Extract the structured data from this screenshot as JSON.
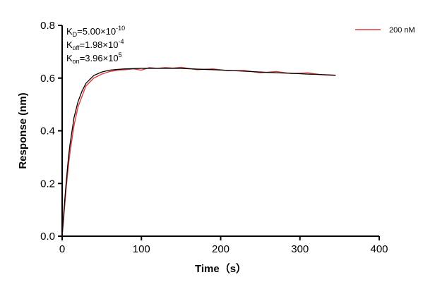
{
  "chart_data": {
    "type": "line",
    "xlabel": "Time（s）",
    "ylabel": "Response (nm)",
    "x": [
      0,
      2,
      5,
      8,
      10,
      15,
      20,
      25,
      30,
      40,
      50,
      60,
      70,
      80,
      90,
      100,
      110,
      120,
      130,
      140,
      150,
      170,
      190,
      210,
      230,
      250,
      270,
      290,
      310,
      330,
      345
    ],
    "series": [
      {
        "name": "200 nM",
        "color": "#e03c3c",
        "values": [
          0,
          0.07,
          0.18,
          0.27,
          0.32,
          0.42,
          0.49,
          0.53,
          0.57,
          0.6,
          0.615,
          0.625,
          0.63,
          0.632,
          0.635,
          0.63,
          0.64,
          0.637,
          0.64,
          0.638,
          0.641,
          0.632,
          0.635,
          0.628,
          0.629,
          0.62,
          0.625,
          0.617,
          0.62,
          0.612,
          0.61
        ]
      },
      {
        "color": "#000000",
        "values": [
          0,
          0.09,
          0.2,
          0.3,
          0.35,
          0.45,
          0.51,
          0.55,
          0.58,
          0.61,
          0.623,
          0.63,
          0.633,
          0.635,
          0.636,
          0.637,
          0.637,
          0.637,
          0.637,
          0.637,
          0.637,
          0.634,
          0.632,
          0.629,
          0.626,
          0.623,
          0.62,
          0.618,
          0.615,
          0.613,
          0.611
        ]
      }
    ],
    "xlim": [
      0,
      400
    ],
    "xticks": [
      0,
      100,
      200,
      300,
      400
    ],
    "ylim": [
      0,
      0.8
    ],
    "yticks": [
      {
        "value": 0,
        "label": "0.0"
      },
      0.2,
      0.4,
      0.6,
      0.8
    ],
    "legend": "top-right",
    "annotations": [
      {
        "symbol": "K",
        "sub": "D",
        "text": "=5.00×10",
        "sup": "-10"
      },
      {
        "symbol": "K",
        "sub": "off",
        "text": "=1.98×10",
        "sup": "-4"
      },
      {
        "symbol": "K",
        "sub": "on",
        "text": "=3.96×10",
        "sup": "5"
      }
    ]
  }
}
